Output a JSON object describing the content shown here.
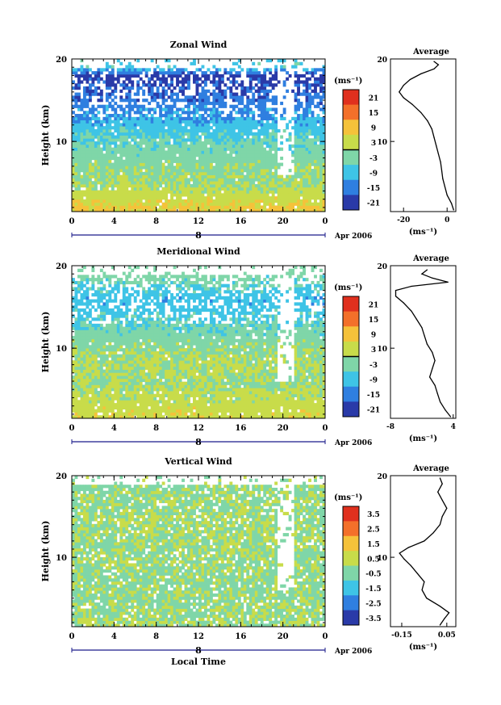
{
  "figure": {
    "shared_xlabel": "Local Time",
    "date_label": "Apr 2006",
    "day_label": "8"
  },
  "chart_data": [
    {
      "type": "heatmap",
      "title": "Zonal Wind",
      "xlabel": "",
      "ylabel": "Height (km)",
      "x_ticks": [
        "0",
        "4",
        "8",
        "12",
        "16",
        "20",
        "0"
      ],
      "y_ticks": [
        "20",
        "10"
      ],
      "xlim": [
        0,
        24
      ],
      "ylim": [
        1.5,
        20
      ],
      "colorbar": {
        "unit": "(ms⁻¹)",
        "ticks": [
          "21",
          "15",
          "9",
          "3",
          "-3",
          "-9",
          "-15",
          "-21"
        ],
        "range": [
          -24,
          24
        ],
        "zero_contour": true
      },
      "field_profile": [
        {
          "height": 2,
          "value": 7
        },
        {
          "height": 3,
          "value": 4
        },
        {
          "height": 5,
          "value": 0
        },
        {
          "height": 7,
          "value": -2
        },
        {
          "height": 9,
          "value": -4
        },
        {
          "height": 11,
          "value": -7
        },
        {
          "height": 13,
          "value": -12
        },
        {
          "height": 15,
          "value": -16
        },
        {
          "height": 17,
          "value": -19
        },
        {
          "height": 18,
          "value": -21
        },
        {
          "height": 19,
          "value": -8
        }
      ],
      "average_profile": {
        "title": "Average",
        "xlabel": "(ms⁻¹)",
        "x_ticks": [
          "-20",
          "0"
        ],
        "y_ticks": [
          "20",
          "10"
        ],
        "xlim": [
          -26,
          4
        ],
        "ylim": [
          1.5,
          20
        ],
        "points": [
          {
            "x": 3,
            "y": 1.7
          },
          {
            "x": 2,
            "y": 2.5
          },
          {
            "x": 0,
            "y": 3.5
          },
          {
            "x": -1,
            "y": 4.5
          },
          {
            "x": -2,
            "y": 5.5
          },
          {
            "x": -2.5,
            "y": 6.5
          },
          {
            "x": -3,
            "y": 7.5
          },
          {
            "x": -4,
            "y": 8.5
          },
          {
            "x": -5,
            "y": 9.5
          },
          {
            "x": -6,
            "y": 10.5
          },
          {
            "x": -7,
            "y": 11.5
          },
          {
            "x": -9,
            "y": 12.5
          },
          {
            "x": -12,
            "y": 13.5
          },
          {
            "x": -16,
            "y": 14.5
          },
          {
            "x": -20,
            "y": 15.3
          },
          {
            "x": -22,
            "y": 16
          },
          {
            "x": -20,
            "y": 16.8
          },
          {
            "x": -17,
            "y": 17.5
          },
          {
            "x": -12,
            "y": 18.2
          },
          {
            "x": -6,
            "y": 18.8
          },
          {
            "x": -4,
            "y": 19.3
          },
          {
            "x": -6,
            "y": 19.7
          }
        ]
      }
    },
    {
      "type": "heatmap",
      "title": "Meridional Wind",
      "xlabel": "",
      "ylabel": "Height (km)",
      "x_ticks": [
        "0",
        "4",
        "8",
        "12",
        "16",
        "20",
        "0"
      ],
      "y_ticks": [
        "20",
        "10"
      ],
      "xlim": [
        0,
        24
      ],
      "ylim": [
        1.5,
        20
      ],
      "colorbar": {
        "unit": "(ms⁻¹)",
        "ticks": [
          "21",
          "15",
          "9",
          "3",
          "-3",
          "-9",
          "-15",
          "-21"
        ],
        "range": [
          -24,
          24
        ],
        "zero_contour": true
      },
      "field_profile": [
        {
          "height": 2,
          "value": 4
        },
        {
          "height": 4,
          "value": 2
        },
        {
          "height": 6,
          "value": 0
        },
        {
          "height": 8,
          "value": 1
        },
        {
          "height": 10,
          "value": -1
        },
        {
          "height": 12,
          "value": -4
        },
        {
          "height": 14,
          "value": -8
        },
        {
          "height": 16,
          "value": -10
        },
        {
          "height": 18,
          "value": -5
        },
        {
          "height": 19,
          "value": -3
        }
      ],
      "average_profile": {
        "title": "Average",
        "xlabel": "(ms⁻¹)",
        "x_ticks": [
          "-8",
          "4"
        ],
        "y_ticks": [
          "20",
          "10"
        ],
        "xlim": [
          -8,
          4.5
        ],
        "ylim": [
          1.5,
          20
        ],
        "points": [
          {
            "x": 3.5,
            "y": 1.7
          },
          {
            "x": 2.5,
            "y": 2.5
          },
          {
            "x": 1.5,
            "y": 3.5
          },
          {
            "x": 1,
            "y": 4.5
          },
          {
            "x": 0.5,
            "y": 5.5
          },
          {
            "x": -0.5,
            "y": 6.5
          },
          {
            "x": 0,
            "y": 7.5
          },
          {
            "x": 0.5,
            "y": 8.5
          },
          {
            "x": 0,
            "y": 9.5
          },
          {
            "x": -1,
            "y": 10.5
          },
          {
            "x": -1.5,
            "y": 11.5
          },
          {
            "x": -2,
            "y": 12.5
          },
          {
            "x": -3,
            "y": 13.5
          },
          {
            "x": -4,
            "y": 14.5
          },
          {
            "x": -5.5,
            "y": 15.5
          },
          {
            "x": -7,
            "y": 16.3
          },
          {
            "x": -7,
            "y": 17
          },
          {
            "x": -4,
            "y": 17.5
          },
          {
            "x": 3,
            "y": 18
          },
          {
            "x": 0,
            "y": 18.5
          },
          {
            "x": -2,
            "y": 19
          },
          {
            "x": -1,
            "y": 19.5
          }
        ]
      }
    },
    {
      "type": "heatmap",
      "title": "Vertical Wind",
      "xlabel": "Local Time",
      "ylabel": "Height (km)",
      "x_ticks": [
        "0",
        "4",
        "8",
        "12",
        "16",
        "20",
        "0"
      ],
      "y_ticks": [
        "20",
        "10"
      ],
      "xlim": [
        0,
        24
      ],
      "ylim": [
        1.5,
        20
      ],
      "colorbar": {
        "unit": "(ms⁻¹)",
        "ticks": [
          "3.5",
          "2.5",
          "1.5",
          "0.5",
          "-0.5",
          "-1.5",
          "-2.5",
          "-3.5"
        ],
        "range": [
          -4,
          4
        ],
        "zero_contour": false
      },
      "field_profile": [
        {
          "height": 2,
          "value": 0
        },
        {
          "height": 6,
          "value": -0.2
        },
        {
          "height": 10,
          "value": -0.1
        },
        {
          "height": 14,
          "value": 0
        },
        {
          "height": 18,
          "value": -0.2
        }
      ],
      "average_profile": {
        "title": "Average",
        "xlabel": "(ms⁻¹)",
        "x_ticks": [
          "-0.15",
          "0.05"
        ],
        "y_ticks": [
          "20",
          "10"
        ],
        "xlim": [
          -0.2,
          0.09
        ],
        "ylim": [
          1.5,
          20
        ],
        "points": [
          {
            "x": 0.02,
            "y": 1.7
          },
          {
            "x": 0.04,
            "y": 2.5
          },
          {
            "x": 0.06,
            "y": 3.2
          },
          {
            "x": 0.02,
            "y": 4
          },
          {
            "x": -0.04,
            "y": 5
          },
          {
            "x": -0.06,
            "y": 6
          },
          {
            "x": -0.05,
            "y": 7
          },
          {
            "x": -0.08,
            "y": 8
          },
          {
            "x": -0.11,
            "y": 9
          },
          {
            "x": -0.14,
            "y": 9.8
          },
          {
            "x": -0.16,
            "y": 10.5
          },
          {
            "x": -0.12,
            "y": 11.2
          },
          {
            "x": -0.05,
            "y": 12
          },
          {
            "x": -0.01,
            "y": 13
          },
          {
            "x": 0.02,
            "y": 14
          },
          {
            "x": 0.03,
            "y": 15
          },
          {
            "x": 0.05,
            "y": 16
          },
          {
            "x": 0.03,
            "y": 17
          },
          {
            "x": 0.01,
            "y": 18
          },
          {
            "x": 0.03,
            "y": 19
          },
          {
            "x": 0.02,
            "y": 19.7
          }
        ]
      }
    }
  ]
}
